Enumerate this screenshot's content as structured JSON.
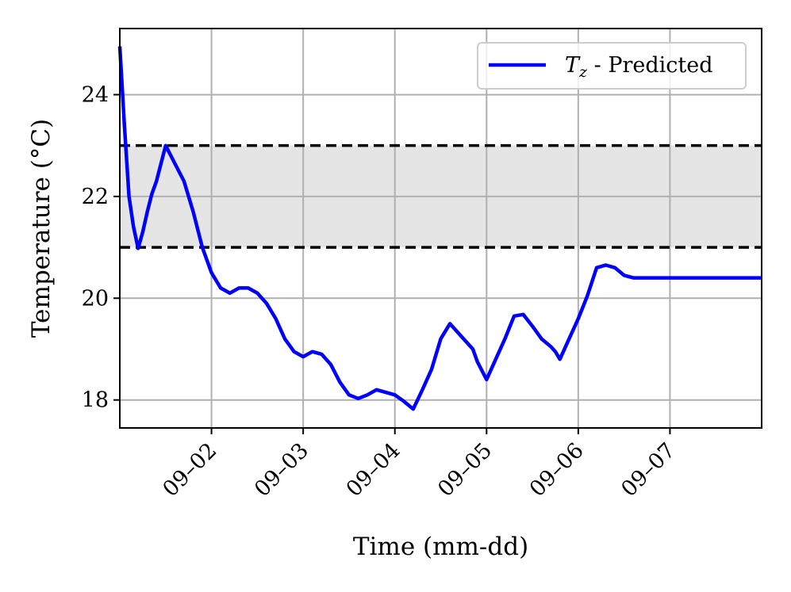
{
  "chart_data": {
    "type": "line",
    "xlabel": "Time (mm-dd)",
    "ylabel": "Temperature (°C)",
    "xlim": [
      0.0,
      7.0
    ],
    "ylim": [
      17.45,
      25.3
    ],
    "x_ticks": [
      {
        "value": 1,
        "label": "09–02"
      },
      {
        "value": 2,
        "label": "09–03"
      },
      {
        "value": 3,
        "label": "09–04"
      },
      {
        "value": 4,
        "label": "09–05"
      },
      {
        "value": 5,
        "label": "09–06"
      },
      {
        "value": 6,
        "label": "09–07"
      }
    ],
    "y_ticks": [
      {
        "value": 18,
        "label": "18"
      },
      {
        "value": 20,
        "label": "20"
      },
      {
        "value": 22,
        "label": "22"
      },
      {
        "value": 24,
        "label": "24"
      }
    ],
    "grid": true,
    "comfort_band": {
      "lower": 21.0,
      "upper": 23.0,
      "fill_color": "#e5e5e5",
      "line_style": "dashed"
    },
    "legend": {
      "position": "top-right",
      "entries": [
        {
          "symbol": "T",
          "subscript": "z",
          "text": " - Predicted"
        }
      ]
    },
    "series": [
      {
        "name": "Tz - Predicted",
        "color": "#0000ff",
        "x": [
          0.0,
          0.05,
          0.1,
          0.15,
          0.2,
          0.25,
          0.3,
          0.35,
          0.4,
          0.5,
          0.6,
          0.7,
          0.8,
          0.9,
          1.0,
          1.1,
          1.2,
          1.3,
          1.4,
          1.5,
          1.6,
          1.7,
          1.8,
          1.9,
          2.0,
          2.1,
          2.2,
          2.3,
          2.4,
          2.5,
          2.6,
          2.7,
          2.8,
          2.9,
          3.0,
          3.1,
          3.2,
          3.3,
          3.4,
          3.5,
          3.6,
          3.7,
          3.8,
          3.85,
          3.9,
          4.0,
          4.1,
          4.2,
          4.3,
          4.4,
          4.5,
          4.6,
          4.7,
          4.75,
          4.8,
          4.9,
          5.0,
          5.1,
          5.2,
          5.3,
          5.4,
          5.5,
          5.6,
          5.7,
          5.8,
          5.9,
          6.0,
          6.1,
          6.2,
          6.3,
          6.4,
          6.5,
          6.6,
          6.7,
          6.75,
          6.8,
          6.85,
          6.9,
          6.95,
          7.0
        ],
        "y": [
          24.95,
          23.4,
          22.0,
          21.4,
          20.98,
          21.3,
          21.7,
          22.05,
          22.3,
          23.0,
          22.65,
          22.3,
          21.7,
          21.0,
          20.5,
          20.2,
          20.1,
          20.2,
          20.2,
          20.1,
          19.9,
          19.6,
          19.2,
          18.95,
          18.85,
          18.95,
          18.9,
          18.7,
          18.35,
          18.1,
          18.03,
          18.1,
          18.2,
          18.15,
          18.1,
          17.97,
          17.82,
          18.2,
          18.6,
          19.2,
          19.5,
          19.3,
          19.1,
          19.0,
          18.75,
          18.4,
          18.8,
          19.2,
          19.65,
          19.68,
          19.45,
          19.2,
          19.05,
          18.95,
          18.8,
          19.2,
          19.6,
          20.05,
          20.6,
          20.65,
          20.6,
          20.45,
          20.4,
          20.4,
          20.4,
          20.4,
          20.4,
          20.4,
          20.4,
          20.4,
          20.4,
          20.4,
          20.4,
          20.4,
          20.4,
          20.4,
          20.4,
          20.4,
          20.4,
          20.4
        ]
      }
    ]
  }
}
